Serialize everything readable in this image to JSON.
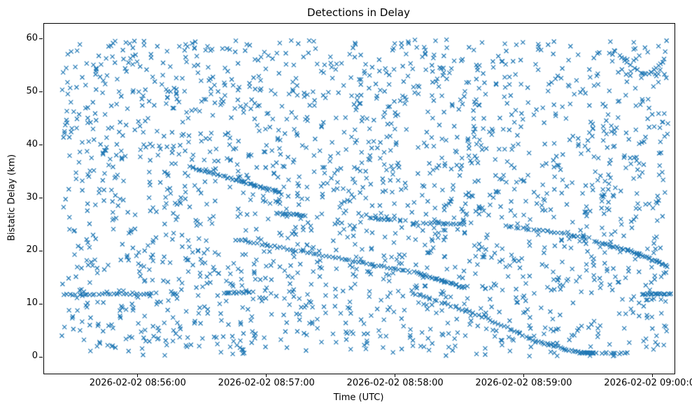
{
  "chart_data": {
    "type": "scatter",
    "title": "Detections in Delay",
    "xlabel": "Time (UTC)",
    "ylabel": "Bistatic Delay (km)",
    "x_axis_epoch": "2026-02-02 08:56:00",
    "x_unit": "seconds relative to 2026-02-02 08:56:00 UTC",
    "xlim": [
      -44,
      250
    ],
    "ylim": [
      -3,
      63
    ],
    "xticks": {
      "values": [
        0,
        60,
        120,
        180,
        240
      ],
      "labels": [
        "2026-02-02 08:56:00",
        "2026-02-02 08:57:00",
        "2026-02-02 08:58:00",
        "2026-02-02 08:59:00",
        "2026-02-02 09:00:00"
      ]
    },
    "yticks": {
      "values": [
        0,
        10,
        20,
        30,
        40,
        50,
        60
      ],
      "labels": [
        "0",
        "10",
        "20",
        "30",
        "40",
        "50",
        "60"
      ]
    },
    "grid": false,
    "legend": "none",
    "marker": {
      "shape": "x",
      "size": 6,
      "color": "#1f77b4",
      "linewidth": 1.2
    },
    "clutter": {
      "description": "uniform random detection clutter filling the axes",
      "count": 2000,
      "seed": 42,
      "t_range": [
        -36,
        247
      ],
      "delay_range": [
        0.3,
        60
      ]
    },
    "tracks": [
      {
        "name": "level-12-left",
        "count": 30,
        "points": [
          [
            -35,
            11.9
          ],
          [
            8,
            12.1
          ]
        ]
      },
      {
        "name": "level-12-mid",
        "count": 14,
        "points": [
          [
            40,
            12.3
          ],
          [
            53,
            12.3
          ]
        ]
      },
      {
        "name": "descent-36-31",
        "count": 45,
        "points": [
          [
            24,
            36.0
          ],
          [
            66,
            31.2
          ]
        ]
      },
      {
        "name": "level-27",
        "count": 14,
        "points": [
          [
            64,
            27.3
          ],
          [
            78,
            26.8
          ]
        ]
      },
      {
        "name": "main-descent-a",
        "count": 90,
        "points": [
          [
            45,
            22.3
          ],
          [
            90,
            19.0
          ],
          [
            130,
            16.0
          ],
          [
            152,
            13.2
          ]
        ]
      },
      {
        "name": "main-descent-b",
        "count": 80,
        "points": [
          [
            128,
            12.2
          ],
          [
            160,
            7.8
          ],
          [
            185,
            3.2
          ],
          [
            205,
            1.0
          ],
          [
            213,
            0.8
          ]
        ]
      },
      {
        "name": "level-26",
        "count": 12,
        "points": [
          [
            108,
            26.3
          ],
          [
            119,
            26.1
          ]
        ]
      },
      {
        "name": "level-25",
        "count": 16,
        "points": [
          [
            133,
            25.4
          ],
          [
            152,
            25.2
          ]
        ]
      },
      {
        "name": "descent-24-23",
        "count": 25,
        "points": [
          [
            171,
            24.9
          ],
          [
            210,
            22.7
          ]
        ]
      },
      {
        "name": "descent-22-17",
        "count": 40,
        "points": [
          [
            213,
            21.9
          ],
          [
            232,
            19.8
          ],
          [
            247,
            17.2
          ]
        ]
      },
      {
        "name": "level-12-right",
        "count": 20,
        "points": [
          [
            235,
            12.0
          ],
          [
            248,
            12.0
          ]
        ]
      },
      {
        "name": "arc-top-right",
        "count": 18,
        "points": [
          [
            222,
            57.8
          ],
          [
            229,
            55.5
          ],
          [
            234,
            53.8
          ],
          [
            238,
            53.5
          ],
          [
            242,
            54.8
          ],
          [
            245,
            56.2
          ]
        ]
      },
      {
        "name": "bottom-cluster",
        "count": 10,
        "points": [
          [
            216,
            0.9
          ],
          [
            228,
            0.8
          ]
        ]
      }
    ]
  }
}
